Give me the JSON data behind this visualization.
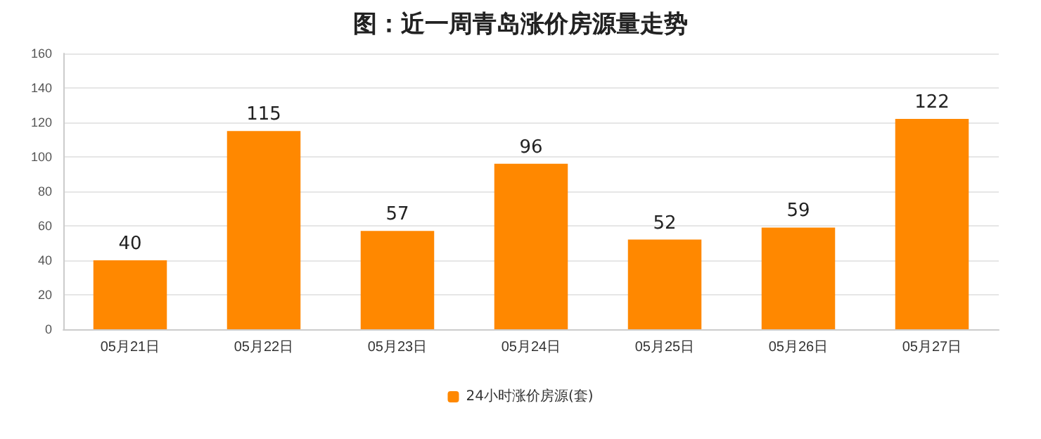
{
  "chart_data": {
    "type": "bar",
    "title": "图：近一周青岛涨价房源量走势",
    "categories": [
      "05月21日",
      "05月22日",
      "05月23日",
      "05月24日",
      "05月25日",
      "05月26日",
      "05月27日"
    ],
    "series": [
      {
        "name": "24小时涨价房源(套)",
        "color": "#ff8800",
        "values": [
          40,
          115,
          57,
          96,
          52,
          59,
          122
        ]
      }
    ],
    "ylim": [
      0,
      160
    ],
    "yticks": [
      0,
      20,
      40,
      60,
      80,
      100,
      120,
      140,
      160
    ],
    "grid": "y",
    "legend": "bottom",
    "data_labels": true
  }
}
